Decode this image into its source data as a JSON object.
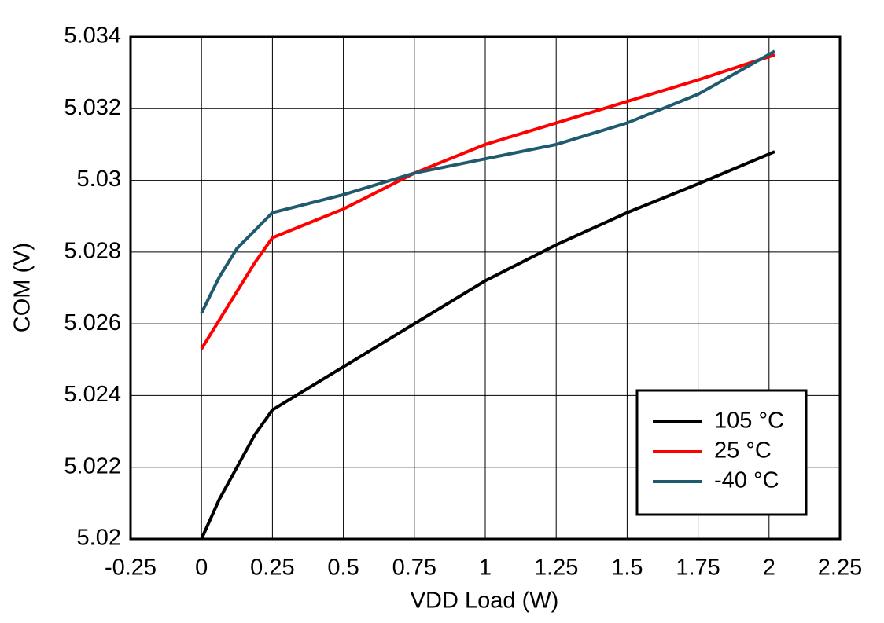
{
  "chart_data": {
    "type": "line",
    "x_label": "VDD Load (W)",
    "y_label": "COM (V)",
    "x": [
      0,
      0.0625,
      0.125,
      0.1875,
      0.25,
      0.5,
      0.75,
      1,
      1.25,
      1.5,
      1.75,
      2.02
    ],
    "series": [
      {
        "name": "105 °C",
        "color": "#000000",
        "values": [
          5.02,
          5.0211,
          5.022,
          5.0229,
          5.0236,
          5.0248,
          5.026,
          5.0272,
          5.0282,
          5.0291,
          5.0299,
          5.0308
        ]
      },
      {
        "name": "25 °C",
        "color": "#ff0000",
        "values": [
          5.0253,
          5.0261,
          5.0269,
          5.0277,
          5.0284,
          5.0292,
          5.0302,
          5.031,
          5.0316,
          5.0322,
          5.0328,
          5.0335
        ]
      },
      {
        "name": "-40 °C",
        "color": "#1f5a6e",
        "values": [
          5.0263,
          5.0273,
          5.0281,
          5.0286,
          5.0291,
          5.0296,
          5.0302,
          5.0306,
          5.031,
          5.0316,
          5.0324,
          5.0336
        ]
      }
    ],
    "xlim": [
      -0.25,
      2.25
    ],
    "xticks": [
      -0.25,
      0,
      0.25,
      0.5,
      0.75,
      1,
      1.25,
      1.5,
      1.75,
      2,
      2.25
    ],
    "ylim": [
      5.02,
      5.034
    ],
    "yticks": [
      5.02,
      5.022,
      5.024,
      5.026,
      5.028,
      5.03,
      5.032,
      5.034
    ],
    "grid": true,
    "legend": "lower right"
  }
}
